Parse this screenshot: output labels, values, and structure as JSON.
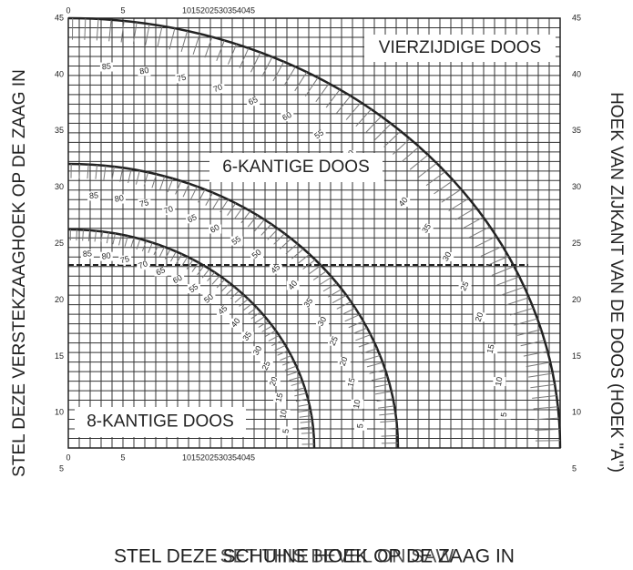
{
  "left_label": "STEL DEZE VERSTEKZAAGHOEK OP DE ZAAG IN",
  "right_label": "HOEK VAN ZIJKANT VAN DE DOOS (HOEK \"A\")",
  "bottom_labels": [
    "STEL DEZE SCHUINE HOEK OP DE ZAAG IN",
    "SET THIS BEVEL ON SAW"
  ],
  "y_ticks": [
    45,
    40,
    35,
    30,
    25,
    20,
    15,
    10,
    5
  ],
  "x_ticks": [
    "0",
    "5",
    "1015202530354045"
  ],
  "arcs": [
    {
      "label": "VIERZIJDIGE DOOS",
      "angles": [
        85,
        80,
        75,
        70,
        65,
        60,
        55,
        50,
        45,
        40,
        35,
        30,
        25,
        20,
        15,
        10,
        5
      ]
    },
    {
      "label": "6-KANTIGE DOOS",
      "angles": [
        85,
        80,
        75,
        70,
        65,
        60,
        55,
        50,
        45,
        40,
        35,
        30,
        25,
        20,
        15,
        10,
        5
      ]
    },
    {
      "label": "8-KANTIGE DOOS",
      "angles": [
        85,
        80,
        75,
        70,
        65,
        60,
        55,
        50,
        45,
        40,
        35,
        30,
        25,
        20,
        15,
        10,
        5
      ]
    }
  ]
}
